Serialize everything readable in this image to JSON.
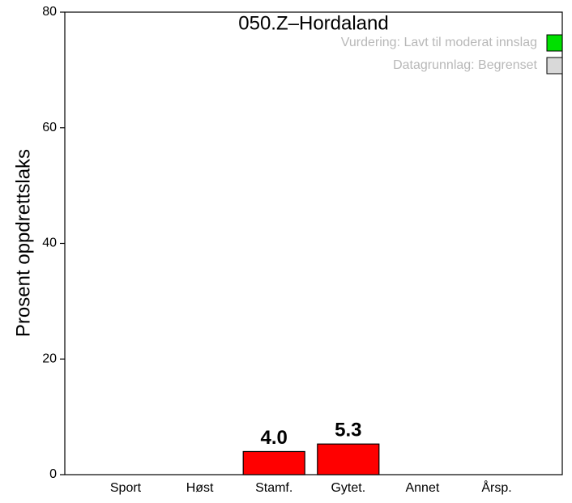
{
  "chart_data": {
    "type": "bar",
    "subtitle": "050.Z–Hordaland",
    "ylabel": "Prosent oppdrettslaks",
    "categories": [
      "Sport",
      "Høst",
      "Stamf.",
      "Gytet.",
      "Annet",
      "Årsp."
    ],
    "values": [
      null,
      null,
      4.0,
      5.3,
      null,
      null
    ],
    "value_labels": [
      null,
      null,
      "4.0",
      "5.3",
      null,
      null
    ],
    "color": "#ff0000",
    "ylim": [
      0,
      80
    ],
    "yticks": [
      0,
      20,
      40,
      60,
      80
    ],
    "legend_position": "upper right",
    "legend": [
      {
        "name": "Vurdering: Lavt til moderat innslag",
        "color": "#00e000"
      },
      {
        "name": "Datagrunnlag: Begrenset",
        "color": "#d9d9d9"
      }
    ]
  }
}
